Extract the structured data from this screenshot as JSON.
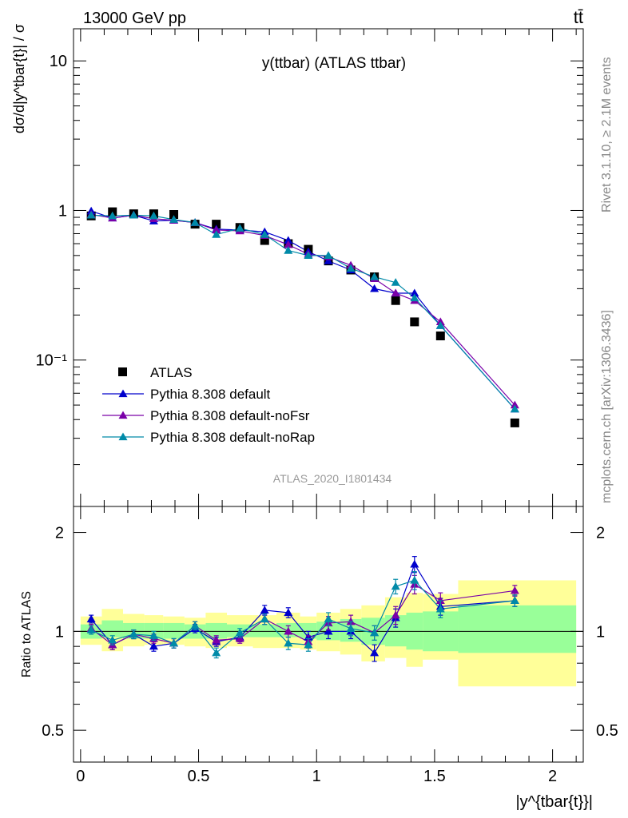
{
  "header": {
    "process": "13000 GeV pp",
    "final_state": "tt̄"
  },
  "side_labels": {
    "rivet": "Rivet 3.1.10, ≥ 2.1M events",
    "mcplots": "mcplots.cern.ch [arXiv:1306.3436]"
  },
  "colors": {
    "atlas": "#000000",
    "default": "#0000cc",
    "noFsr": "#7a00a8",
    "noRap": "#008aa8",
    "band_stat": "#99ff99",
    "band_total": "#ffff99"
  },
  "chart_data": [
    {
      "type": "scatter",
      "panel": "main",
      "title": "y(ttbar) (ATLAS ttbar)",
      "ylabel": "dσ/d|y^tbar{t}| / σ",
      "analysis_label": "ATLAS_2020_I1801434",
      "x_scale": "linear",
      "y_scale": "log",
      "xlim": [
        -0.03,
        2.13
      ],
      "ylim": [
        0.0105,
        16.4
      ],
      "yticks": [
        {
          "value": 10,
          "label": "10"
        },
        {
          "value": 1,
          "label": "1"
        },
        {
          "value": 0.1,
          "label": "10⁻¹"
        }
      ],
      "legend": {
        "placement": "bottom-left",
        "entries": [
          "ATLAS",
          "Pythia 8.308 default",
          "Pythia 8.308 default-noFsr",
          "Pythia 8.308 default-noRap"
        ]
      },
      "x": [
        0.045,
        0.135,
        0.225,
        0.31,
        0.395,
        0.485,
        0.575,
        0.675,
        0.78,
        0.88,
        0.965,
        1.05,
        1.145,
        1.245,
        1.335,
        1.415,
        1.525,
        1.84
      ],
      "series": [
        {
          "name": "ATLAS",
          "marker": "square",
          "values": [
            0.92,
            0.98,
            0.95,
            0.95,
            0.94,
            0.81,
            0.81,
            0.77,
            0.63,
            0.6,
            0.55,
            0.46,
            0.4,
            0.36,
            0.25,
            0.18,
            0.145,
            0.038
          ]
        },
        {
          "name": "Pythia 8.308 default",
          "marker": "triangle",
          "values": [
            0.99,
            0.89,
            0.93,
            0.85,
            0.86,
            0.83,
            0.75,
            0.74,
            0.72,
            0.63,
            0.53,
            0.46,
            0.4,
            0.3,
            0.28,
            0.28,
            0.17,
            0.047
          ]
        },
        {
          "name": "Pythia 8.308 default-noFsr",
          "marker": "triangle",
          "values": [
            0.94,
            0.89,
            0.93,
            0.88,
            0.86,
            0.83,
            0.74,
            0.73,
            0.68,
            0.59,
            0.51,
            0.49,
            0.43,
            0.35,
            0.28,
            0.25,
            0.18,
            0.05
          ]
        },
        {
          "name": "Pythia 8.308 default-noRap",
          "marker": "triangle",
          "values": [
            0.93,
            0.92,
            0.93,
            0.92,
            0.87,
            0.83,
            0.69,
            0.76,
            0.69,
            0.54,
            0.5,
            0.5,
            0.41,
            0.36,
            0.33,
            0.26,
            0.17,
            0.047
          ]
        }
      ]
    },
    {
      "type": "scatter",
      "panel": "ratio",
      "ylabel": "Ratio to ATLAS",
      "xlabel": "|y^{tbar{t}}|",
      "x_scale": "linear",
      "y_scale": "log",
      "xlim": [
        -0.03,
        2.13
      ],
      "ylim": [
        0.4,
        2.4
      ],
      "xticks": [
        {
          "value": 0,
          "label": "0"
        },
        {
          "value": 0.5,
          "label": "0.5"
        },
        {
          "value": 1,
          "label": "1"
        },
        {
          "value": 1.5,
          "label": "1.5"
        },
        {
          "value": 2,
          "label": "2"
        }
      ],
      "yticks": [
        {
          "value": 2,
          "label": "2"
        },
        {
          "value": 1,
          "label": "1"
        },
        {
          "value": 0.5,
          "label": "0.5"
        }
      ],
      "bin_edges": [
        0.0,
        0.09,
        0.18,
        0.27,
        0.35,
        0.44,
        0.53,
        0.62,
        0.73,
        0.83,
        0.93,
        1.0,
        1.1,
        1.19,
        1.29,
        1.38,
        1.45,
        1.6,
        2.1
      ],
      "uncertainty_bands": [
        {
          "name": "stat",
          "lo": [
            0.95,
            0.96,
            0.95,
            0.95,
            0.95,
            0.95,
            0.95,
            0.96,
            0.96,
            0.96,
            0.95,
            0.94,
            0.93,
            0.91,
            0.9,
            0.88,
            0.87,
            0.86
          ],
          "hi": [
            1.05,
            1.08,
            1.06,
            1.06,
            1.06,
            1.05,
            1.06,
            1.05,
            1.05,
            1.06,
            1.06,
            1.07,
            1.09,
            1.1,
            1.12,
            1.14,
            1.15,
            1.2
          ]
        },
        {
          "name": "total",
          "lo": [
            0.91,
            0.87,
            0.9,
            0.91,
            0.91,
            0.9,
            0.89,
            0.9,
            0.89,
            0.89,
            0.88,
            0.87,
            0.85,
            0.81,
            0.83,
            0.78,
            0.82,
            0.68
          ],
          "hi": [
            1.11,
            1.17,
            1.13,
            1.12,
            1.11,
            1.1,
            1.14,
            1.12,
            1.12,
            1.14,
            1.11,
            1.14,
            1.17,
            1.2,
            1.27,
            1.31,
            1.3,
            1.43
          ]
        }
      ],
      "x": [
        0.045,
        0.135,
        0.225,
        0.31,
        0.395,
        0.485,
        0.575,
        0.675,
        0.78,
        0.88,
        0.965,
        1.05,
        1.145,
        1.245,
        1.335,
        1.415,
        1.525,
        1.84
      ],
      "series": [
        {
          "name": "Pythia 8.308 default",
          "values": [
            1.09,
            0.91,
            0.98,
            0.9,
            0.92,
            1.02,
            0.93,
            0.96,
            1.16,
            1.14,
            0.96,
            1.0,
            1.0,
            0.86,
            1.1,
            1.6,
            1.19,
            1.24
          ],
          "err": [
            0.03,
            0.03,
            0.03,
            0.03,
            0.03,
            0.03,
            0.03,
            0.03,
            0.04,
            0.04,
            0.04,
            0.05,
            0.05,
            0.05,
            0.07,
            0.09,
            0.07,
            0.05
          ]
        },
        {
          "name": "Pythia 8.308 default-noFsr",
          "values": [
            1.02,
            0.91,
            0.98,
            0.95,
            0.92,
            1.04,
            0.94,
            0.95,
            1.09,
            1.0,
            0.93,
            1.06,
            1.07,
            0.99,
            1.12,
            1.39,
            1.24,
            1.33
          ],
          "err": [
            0.03,
            0.03,
            0.03,
            0.03,
            0.03,
            0.03,
            0.03,
            0.03,
            0.04,
            0.04,
            0.04,
            0.05,
            0.05,
            0.05,
            0.07,
            0.09,
            0.07,
            0.05
          ]
        },
        {
          "name": "Pythia 8.308 default-noRap",
          "values": [
            1.01,
            0.94,
            0.98,
            0.97,
            0.92,
            1.04,
            0.86,
            0.99,
            1.09,
            0.92,
            0.91,
            1.09,
            1.02,
            0.99,
            1.37,
            1.43,
            1.17,
            1.24
          ],
          "err": [
            0.03,
            0.03,
            0.03,
            0.03,
            0.03,
            0.03,
            0.03,
            0.03,
            0.04,
            0.04,
            0.04,
            0.05,
            0.05,
            0.05,
            0.07,
            0.09,
            0.07,
            0.05
          ]
        }
      ]
    }
  ]
}
